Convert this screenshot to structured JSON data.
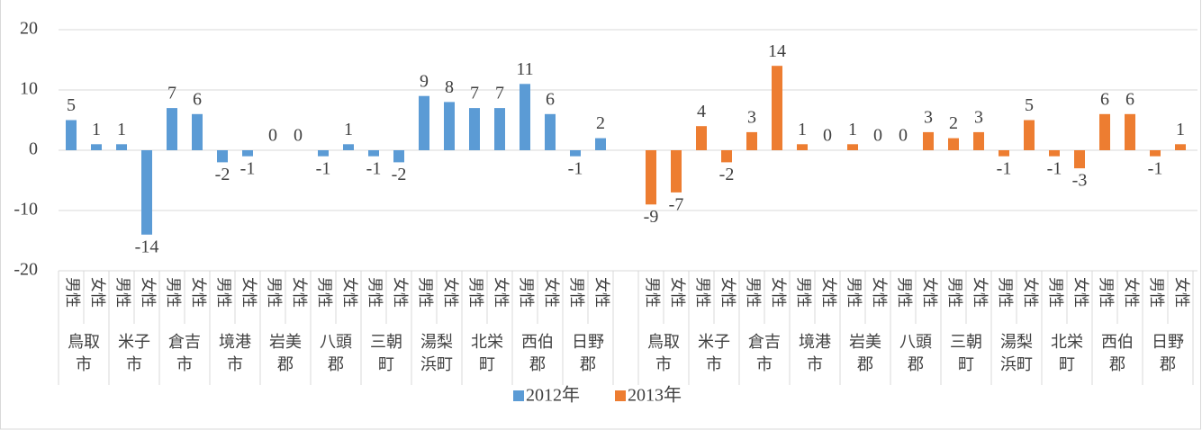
{
  "chart_data": {
    "type": "bar",
    "categories": [
      "男性",
      "女性",
      "男性",
      "女性",
      "男性",
      "女性",
      "男性",
      "女性",
      "男性",
      "女性",
      "男性",
      "女性",
      "男性",
      "女性",
      "男性",
      "女性",
      "男性",
      "女性",
      "男性",
      "女性",
      "男性",
      "女性",
      null,
      "男性",
      "女性",
      "男性",
      "女性",
      "男性",
      "女性",
      "男性",
      "女性",
      "男性",
      "女性",
      "男性",
      "女性",
      "男性",
      "女性",
      "男性",
      "女性",
      "男性",
      "女性",
      "男性",
      "女性",
      "男性",
      "女性"
    ],
    "regions": [
      "鳥取市",
      "米子市",
      "倉吉市",
      "境港市",
      "岩美郡",
      "八頭郡",
      "三朝町",
      "湯梨浜町",
      "北栄町",
      "西伯郡",
      "日野郡",
      "鳥取市",
      "米子市",
      "倉吉市",
      "境港市",
      "岩美郡",
      "八頭郡",
      "三朝町",
      "湯梨浜町",
      "北栄町",
      "西伯郡",
      "日野郡"
    ],
    "series": [
      {
        "name": "2012年",
        "color": "#5b9bd5",
        "values": [
          5,
          1,
          1,
          -14,
          7,
          6,
          -2,
          -1,
          0,
          0,
          -1,
          1,
          -1,
          -2,
          9,
          8,
          7,
          7,
          11,
          6,
          -1,
          2,
          null,
          null,
          null,
          null,
          null,
          null,
          null,
          null,
          null,
          null,
          null,
          null,
          null,
          null,
          null,
          null,
          null,
          null,
          null,
          null,
          null,
          null,
          null
        ]
      },
      {
        "name": "2013年",
        "color": "#ed7d31",
        "values": [
          null,
          null,
          null,
          null,
          null,
          null,
          null,
          null,
          null,
          null,
          null,
          null,
          null,
          null,
          null,
          null,
          null,
          null,
          null,
          null,
          null,
          null,
          null,
          -9,
          -7,
          4,
          -2,
          3,
          14,
          1,
          0,
          1,
          0,
          0,
          3,
          2,
          3,
          -1,
          5,
          -1,
          -3,
          6,
          6,
          -1,
          1
        ]
      }
    ],
    "ylim": [
      -20,
      20
    ],
    "yticks": [
      -20,
      -10,
      0,
      10,
      20
    ],
    "grid": true,
    "legend": "bottom"
  }
}
